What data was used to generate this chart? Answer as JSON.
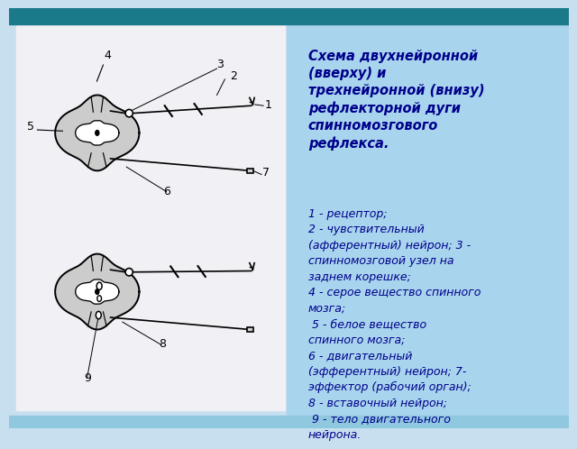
{
  "bg_top_color": "#1a7a8a",
  "bg_slide_color": "#c8dff0",
  "left_panel_color": "#f0f0f5",
  "right_panel_color": "#a8d4ee",
  "title_text": "Схема двухнейронной\n(вверху) и\nтрехнейронной (внизу)\nрефлекторной дуги\nспинномозгового\nрефлекса.",
  "body_text": "1 - рецептор;\n2 - чувствительный\n(афферентный) нейрон; 3 -\nспинномозговой узел на\nзаднем корешке;\n4 - серое вещество спинного\nмозга;\n 5 - белое вещество\nспинного мозга;\n6 - двигательный\n(эфферентный) нейрон; 7-\nэффектор (рабочий орган);\n8 - вставочный нейрон;\n 9 - тело двигательного\nнейрона.",
  "title_color": "#00008b",
  "body_color": "#00008b",
  "title_fontsize": 10.5,
  "body_fontsize": 9.0
}
